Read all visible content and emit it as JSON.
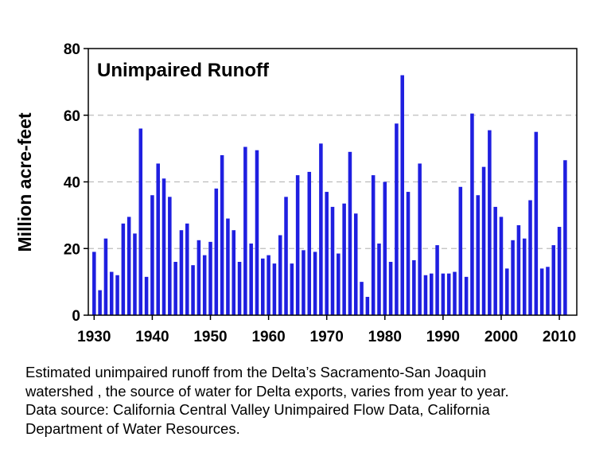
{
  "chart_data": {
    "type": "bar",
    "title": "Unimpaired Runoff",
    "xlabel": "",
    "ylabel": "Million acre-feet",
    "ylim": [
      0,
      80
    ],
    "yticks": [
      "0",
      "20",
      "40",
      "60",
      "80"
    ],
    "xticks": [
      "1930",
      "1940",
      "1950",
      "1960",
      "1970",
      "1980",
      "1990",
      "2000",
      "2010"
    ],
    "xlim": [
      1929,
      2013
    ],
    "grid": "horizontal dashed",
    "bar_color": "#1f1fe0",
    "x": [
      1930,
      1931,
      1932,
      1933,
      1934,
      1935,
      1936,
      1937,
      1938,
      1939,
      1940,
      1941,
      1942,
      1943,
      1944,
      1945,
      1946,
      1947,
      1948,
      1949,
      1950,
      1951,
      1952,
      1953,
      1954,
      1955,
      1956,
      1957,
      1958,
      1959,
      1960,
      1961,
      1962,
      1963,
      1964,
      1965,
      1966,
      1967,
      1968,
      1969,
      1970,
      1971,
      1972,
      1973,
      1974,
      1975,
      1976,
      1977,
      1978,
      1979,
      1980,
      1981,
      1982,
      1983,
      1984,
      1985,
      1986,
      1987,
      1988,
      1989,
      1990,
      1991,
      1992,
      1993,
      1994,
      1995,
      1996,
      1997,
      1998,
      1999,
      2000,
      2001,
      2002,
      2003,
      2004,
      2005,
      2006,
      2007,
      2008,
      2009,
      2010,
      2011
    ],
    "values": [
      19,
      7.5,
      23,
      13,
      12,
      27.5,
      29.5,
      24.5,
      56,
      11.5,
      36,
      45.5,
      41,
      35.5,
      16,
      25.5,
      27.5,
      15,
      22.5,
      18,
      22,
      38,
      48,
      29,
      25.5,
      16,
      50.5,
      21.5,
      49.5,
      17,
      18,
      15.5,
      24,
      35.5,
      15.5,
      42,
      19.5,
      43,
      19,
      51.5,
      37,
      32.5,
      18.5,
      33.5,
      49,
      30.5,
      10,
      5.5,
      42,
      21.5,
      40,
      16,
      57.5,
      72,
      37,
      16.5,
      45.5,
      12,
      12.5,
      21,
      12.5,
      12.5,
      13,
      38.5,
      11.5,
      60.5,
      36,
      44.5,
      55.5,
      32.5,
      29.5,
      14,
      22.5,
      27,
      23,
      34.5,
      55,
      14,
      14.5,
      21,
      26.5,
      46.5
    ]
  },
  "caption": {
    "line1": "Estimated unimpaired runoff from the Delta’s Sacramento-San Joaquin",
    "line2": "watershed , the source of water for Delta exports, varies from year to year.",
    "line3": "Data source: California Central Valley Unimpaired Flow Data, California",
    "line4": "Department of Water Resources."
  }
}
